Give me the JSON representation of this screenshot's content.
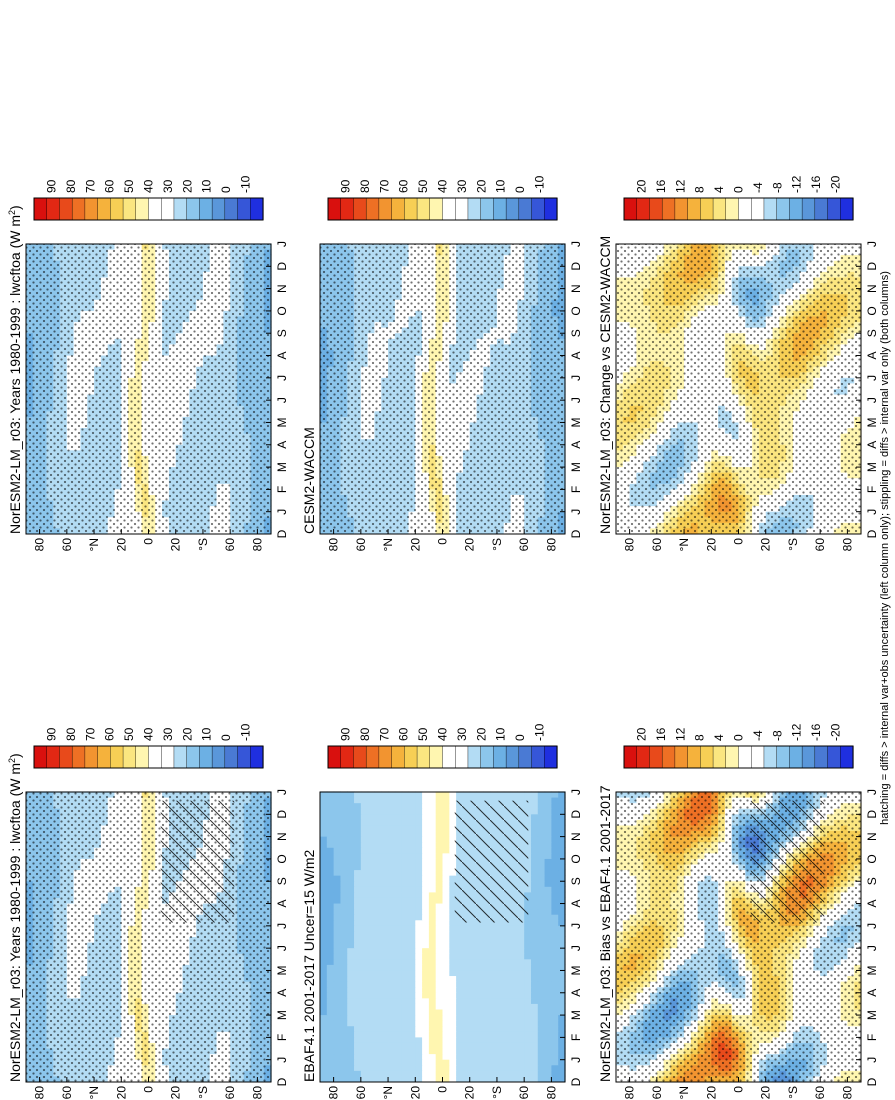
{
  "footer_note": "hatching = diffs > internal var+obs uncertainty (left column only); stippling = diffs > internal var only (both columns)",
  "colors": {
    "full": [
      "#1f2fe0",
      "#3656d8",
      "#4a7ad4",
      "#5a97da",
      "#6cb0e4",
      "#8cc6ec",
      "#b3dcf4",
      "#ffffff",
      "#ffffff",
      "#fff6b0",
      "#fbe680",
      "#f7cf55",
      "#f5b23c",
      "#f29430",
      "#ee7024",
      "#e84a1b",
      "#e22814",
      "#d9100e"
    ],
    "diff": [
      "#1f2fe0",
      "#3656d8",
      "#4a7ad4",
      "#5a97da",
      "#6cb0e4",
      "#8cc6ec",
      "#b3dcf4",
      "#ffffff",
      "#ffffff",
      "#fff6b0",
      "#fbe680",
      "#f7cf55",
      "#f5b23c",
      "#f29430",
      "#ee7024",
      "#e84a1b",
      "#e22814",
      "#d9100e"
    ]
  },
  "chart_data": [
    {
      "type": "heatmap",
      "title": "NorESM2-LM_r03: Years 1980-1999 : lwcftoa (W m",
      "title_sup": "2",
      "title_close": ")",
      "x_ticks": [
        "D",
        "J",
        "F",
        "M",
        "A",
        "M",
        "J",
        "J",
        "A",
        "S",
        "O",
        "N",
        "D",
        "J"
      ],
      "y_ticks": [
        "80",
        "60",
        "°N",
        "20",
        "0",
        "20",
        "°S",
        "60",
        "80"
      ],
      "y_range": [
        -90,
        90
      ],
      "colorbar_labels": [
        "90",
        "80",
        "70",
        "60",
        "50",
        "40",
        "30",
        "20",
        "10",
        "0",
        "-10"
      ],
      "colormap": "full",
      "hatching": true,
      "stippling": true,
      "field": {
        "eq": 46,
        "itcz_amp": 8,
        "mid": 28,
        "pole": 12,
        "seasonal": 6
      }
    },
    {
      "type": "heatmap",
      "title": "NorESM2-LM_r03: Years 1980-1999 : lwcftoa (W m",
      "title_sup": "2",
      "title_close": ")",
      "x_ticks": [
        "D",
        "J",
        "F",
        "M",
        "A",
        "M",
        "J",
        "J",
        "A",
        "S",
        "O",
        "N",
        "D",
        "J"
      ],
      "y_ticks": [
        "80",
        "60",
        "°N",
        "20",
        "0",
        "20",
        "°S",
        "60",
        "80"
      ],
      "y_range": [
        -90,
        90
      ],
      "colorbar_labels": [
        "90",
        "80",
        "70",
        "60",
        "50",
        "40",
        "30",
        "20",
        "10",
        "0",
        "-10"
      ],
      "colormap": "full",
      "hatching": false,
      "stippling": true,
      "field": {
        "eq": 46,
        "itcz_amp": 8,
        "mid": 28,
        "pole": 12,
        "seasonal": 6
      }
    },
    {
      "type": "heatmap",
      "title": "EBAF4.1 2001-2017 Uncer=15 W/m2",
      "x_ticks": [
        "D",
        "J",
        "F",
        "M",
        "A",
        "M",
        "J",
        "J",
        "A",
        "S",
        "O",
        "N",
        "D",
        "J"
      ],
      "y_ticks": [
        "80",
        "60",
        "°N",
        "20",
        "0",
        "20",
        "°S",
        "60",
        "80"
      ],
      "y_range": [
        -90,
        90
      ],
      "colorbar_labels": [
        "90",
        "80",
        "70",
        "60",
        "50",
        "40",
        "30",
        "20",
        "10",
        "0",
        "-10"
      ],
      "colormap": "full",
      "hatching": true,
      "stippling": false,
      "field": {
        "eq": 44,
        "itcz_amp": 7,
        "mid": 26,
        "pole": 12,
        "seasonal": 5
      }
    },
    {
      "type": "heatmap",
      "title": "CESM2-WACCM",
      "x_ticks": [
        "D",
        "J",
        "F",
        "M",
        "A",
        "M",
        "J",
        "J",
        "A",
        "S",
        "O",
        "N",
        "D",
        "J"
      ],
      "y_ticks": [
        "80",
        "60",
        "°N",
        "20",
        "0",
        "20",
        "°S",
        "60",
        "80"
      ],
      "y_range": [
        -90,
        90
      ],
      "colorbar_labels": [
        "90",
        "80",
        "70",
        "60",
        "50",
        "40",
        "30",
        "20",
        "10",
        "0",
        "-10"
      ],
      "colormap": "full",
      "hatching": false,
      "stippling": true,
      "field": {
        "eq": 47,
        "itcz_amp": 9,
        "mid": 27,
        "pole": 11,
        "seasonal": 6
      }
    },
    {
      "type": "heatmap",
      "title": "NorESM2-LM_r03: Bias vs EBAF4.1 2001-2017",
      "x_ticks": [
        "D",
        "J",
        "F",
        "M",
        "A",
        "M",
        "J",
        "J",
        "A",
        "S",
        "O",
        "N",
        "D",
        "J"
      ],
      "y_ticks": [
        "80",
        "60",
        "°N",
        "20",
        "0",
        "20",
        "°S",
        "60",
        "80"
      ],
      "y_range": [
        -90,
        90
      ],
      "colorbar_labels": [
        "20",
        "16",
        "12",
        "8",
        "4",
        "0",
        "-4",
        "-8",
        "-12",
        "-16",
        "-20"
      ],
      "colormap": "diff",
      "hatching": true,
      "stippling": true,
      "field": {
        "diff": true,
        "amp": 9
      }
    },
    {
      "type": "heatmap",
      "title": "NorESM2-LM_r03: Change vs CESM2-WACCM",
      "x_ticks": [
        "D",
        "J",
        "F",
        "M",
        "A",
        "M",
        "J",
        "J",
        "A",
        "S",
        "O",
        "N",
        "D",
        "J"
      ],
      "y_ticks": [
        "80",
        "60",
        "°N",
        "20",
        "0",
        "20",
        "°S",
        "60",
        "80"
      ],
      "y_range": [
        -90,
        90
      ],
      "colorbar_labels": [
        "20",
        "16",
        "12",
        "8",
        "4",
        "0",
        "-4",
        "-8",
        "-12",
        "-16",
        "-20"
      ],
      "colormap": "diff",
      "hatching": false,
      "stippling": true,
      "field": {
        "diff": true,
        "amp": 6
      }
    }
  ]
}
